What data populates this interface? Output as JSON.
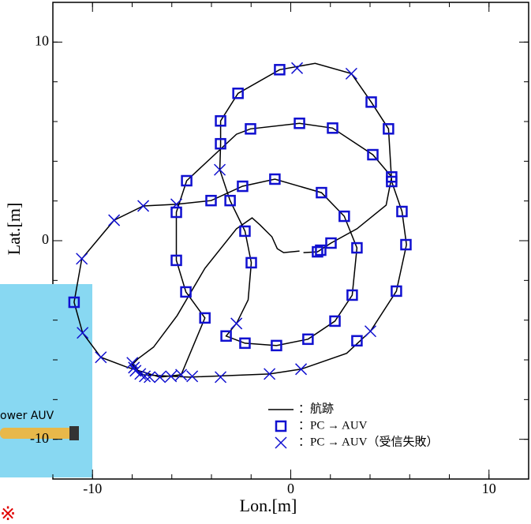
{
  "chart_data": {
    "type": "line",
    "xlabel": "Lon.[m]",
    "ylabel": "Lat.[m]",
    "xlim": [
      -12,
      12
    ],
    "ylim": [
      -12,
      12
    ],
    "xticks": [
      -10,
      0,
      10
    ],
    "yticks": [
      -10,
      0,
      10
    ],
    "xminorticks": [
      -12,
      -10,
      -8,
      -6,
      -4,
      -2,
      0,
      2,
      4,
      6,
      8,
      10,
      12
    ],
    "yminorticks": [
      -12,
      -10,
      -8,
      -6,
      -4,
      -2,
      0,
      2,
      4,
      6,
      8,
      10,
      12
    ],
    "legend": "lower-right",
    "overlay_text": "ower AUV",
    "overlay_mark": "※",
    "series": [
      {
        "name": "：航跡",
        "color": "#000000",
        "marker": "line",
        "x": [
          0.44,
          -0.36,
          -0.68,
          -0.95,
          -1.55,
          -1.95,
          -2.74,
          -4.33,
          -5.73,
          -6.92,
          -7.71,
          -7.99,
          -7.51,
          -5.13,
          -1.07,
          0.52,
          2.82,
          4.02,
          5.33,
          5.84,
          5.61,
          5.09,
          4.93,
          4.06,
          3.06,
          1.23,
          -0.56,
          -2.66,
          -3.54,
          -3.54,
          -3.58,
          -3.06,
          -2.31,
          -1.99,
          -2.15,
          -2.74,
          -3.26,
          -2.31,
          -0.72,
          0.87,
          2.23,
          3.1,
          3.34,
          2.7,
          1.55,
          -0.8,
          -2.43,
          -4.02,
          -5.77,
          -7.44,
          -8.91,
          -10.54,
          -10.93,
          -10.5,
          -9.58,
          -8.31,
          -6.6,
          -5.53,
          -4.33,
          -5.29,
          -5.77,
          -5.77,
          -5.25,
          -2.74,
          -2.03,
          0.44,
          2.11,
          4.14,
          5.09,
          4.81,
          3.34,
          2.03,
          1.35,
          0.64
        ],
        "values": [
          -0.52,
          -0.6,
          -0.4,
          0.2,
          0.79,
          1.15,
          0.6,
          -1.39,
          -3.77,
          -5.36,
          -5.95,
          -6.23,
          -6.75,
          -6.87,
          -6.71,
          -6.47,
          -5.67,
          -4.56,
          -2.54,
          -0.2,
          1.47,
          2.98,
          5.63,
          6.98,
          8.41,
          8.93,
          8.61,
          7.42,
          6.03,
          4.88,
          3.57,
          2.02,
          0.48,
          -1.11,
          -2.98,
          -4.17,
          -4.8,
          -5.16,
          -5.28,
          -4.96,
          -4.05,
          -2.74,
          -0.36,
          1.23,
          2.42,
          3.1,
          2.74,
          2.02,
          1.83,
          1.75,
          1.03,
          -0.91,
          -3.1,
          -4.64,
          -5.87,
          -6.35,
          -6.87,
          -6.75,
          -3.89,
          -2.58,
          -0.99,
          1.43,
          3.02,
          5.36,
          5.63,
          5.91,
          5.67,
          4.33,
          3.21,
          1.79,
          0.6,
          -0.12,
          -0.56,
          -0.6
        ]
      },
      {
        "name": "：PC → AUV",
        "color": "#1010d0",
        "marker": "square",
        "x": [
          -0.56,
          -2.66,
          -3.54,
          -3.54,
          -2.03,
          0.44,
          2.11,
          4.06,
          4.93,
          4.14,
          5.09,
          5.09,
          5.61,
          5.81,
          5.33,
          3.34,
          2.23,
          0.87,
          -0.72,
          -2.31,
          -3.26,
          -4.33,
          -5.29,
          -5.77,
          -5.77,
          -5.25,
          -4.02,
          -3.06,
          -2.43,
          -0.8,
          1.55,
          2.7,
          3.34,
          2.03,
          1.51,
          1.35,
          3.1,
          -2.31,
          -1.99,
          -10.93
        ],
        "values": [
          8.61,
          7.42,
          6.03,
          4.88,
          5.63,
          5.91,
          5.67,
          6.98,
          5.63,
          4.33,
          3.21,
          2.98,
          1.47,
          -0.2,
          -2.54,
          -5.04,
          -4.05,
          -4.96,
          -5.28,
          -5.16,
          -4.8,
          -3.89,
          -2.58,
          -0.99,
          1.43,
          3.02,
          2.02,
          2.02,
          2.74,
          3.1,
          2.42,
          1.23,
          -0.36,
          -0.12,
          -0.48,
          -0.56,
          -2.74,
          0.48,
          -1.11,
          -3.1
        ]
      },
      {
        "name": "：PC → AUV（受信失敗）",
        "color": "#1010d0",
        "marker": "cross",
        "x": [
          0.32,
          3.06,
          -3.58,
          -5.77,
          -7.44,
          -8.91,
          -10.54,
          -10.5,
          -9.58,
          -7.99,
          -7.91,
          -7.83,
          -7.59,
          -7.36,
          -7.12,
          -6.6,
          -6.04,
          -5.53,
          -4.97,
          -3.54,
          -1.07,
          0.52,
          4.02,
          -2.74
        ],
        "values": [
          8.69,
          8.41,
          3.57,
          1.83,
          1.75,
          1.03,
          -0.91,
          -4.64,
          -5.87,
          -6.15,
          -6.39,
          -6.55,
          -6.71,
          -6.83,
          -6.87,
          -6.87,
          -6.83,
          -6.75,
          -6.83,
          -6.87,
          -6.71,
          -6.47,
          -4.56,
          -4.17
        ]
      }
    ]
  }
}
